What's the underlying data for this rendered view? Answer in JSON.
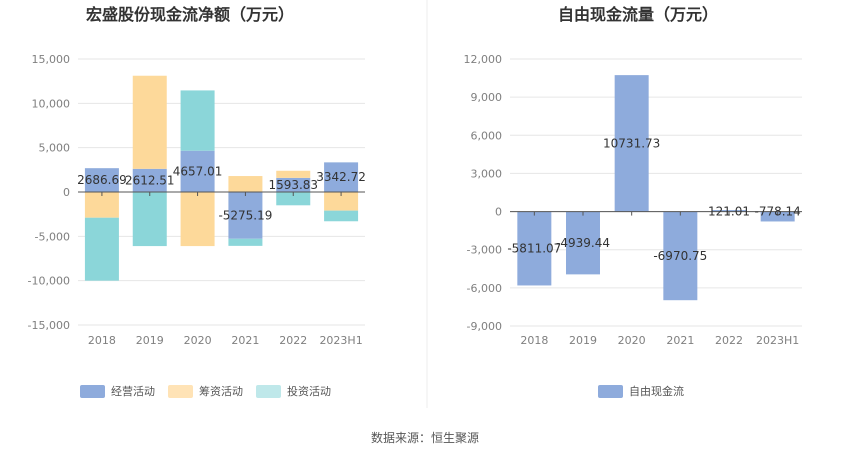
{
  "source_text": "数据来源：恒生聚源",
  "chart_data": [
    {
      "type": "bar",
      "stacked": true,
      "title": "宏盛股份现金流净额（万元）",
      "categories": [
        "2018",
        "2019",
        "2020",
        "2021",
        "2022",
        "2023H1"
      ],
      "ylim": [
        -15000,
        15000
      ],
      "yticks": [
        15000,
        10000,
        5000,
        0,
        -5000,
        -10000,
        -15000
      ],
      "ytick_labels": [
        "15,000",
        "10,000",
        "5,000",
        "0",
        "-5,000",
        "-10,000",
        "-15,000"
      ],
      "series": [
        {
          "name": "经营活动",
          "color": "#8eabdc",
          "values": [
            2686.69,
            2612.51,
            4657.01,
            -5275.19,
            1593.83,
            3342.72
          ]
        },
        {
          "name": "筹资活动",
          "color": "#fdd99a",
          "values": [
            -2900,
            10500,
            -6100,
            1800,
            800,
            -2100
          ]
        },
        {
          "name": "投资活动",
          "color": "#8bd6d9",
          "values": [
            -7100,
            -6100,
            6800,
            -800,
            -1500,
            -1200
          ]
        }
      ],
      "data_labels": [
        "2686.69",
        "2612.51",
        "4657.01",
        "-5275.19",
        "1593.83",
        "3342.72"
      ],
      "legend_labels": [
        "经营活动",
        "筹资活动",
        "投资活动"
      ],
      "legend_colors": [
        "#8eabdc",
        "#ffe3b6",
        "#bfe8ea"
      ],
      "legend_position": "bottom"
    },
    {
      "type": "bar",
      "title": "自由现金流量（万元）",
      "categories": [
        "2018",
        "2019",
        "2020",
        "2021",
        "2022",
        "2023H1"
      ],
      "ylim": [
        -9000,
        12000
      ],
      "yticks": [
        12000,
        9000,
        6000,
        3000,
        0,
        -3000,
        -6000,
        -9000
      ],
      "ytick_labels": [
        "12,000",
        "9,000",
        "6,000",
        "3,000",
        "0",
        "-3,000",
        "-6,000",
        "-9,000"
      ],
      "series": [
        {
          "name": "自由现金流",
          "color": "#8eabdc",
          "values": [
            -5811.07,
            -4939.44,
            10731.73,
            -6970.75,
            121.01,
            -778.14
          ]
        }
      ],
      "data_labels": [
        "-5811.07",
        "-4939.44",
        "10731.73",
        "-6970.75",
        "121.01",
        "-778.14"
      ],
      "legend_labels": [
        "自由现金流"
      ],
      "legend_colors": [
        "#8eabdc"
      ],
      "legend_position": "bottom"
    }
  ]
}
